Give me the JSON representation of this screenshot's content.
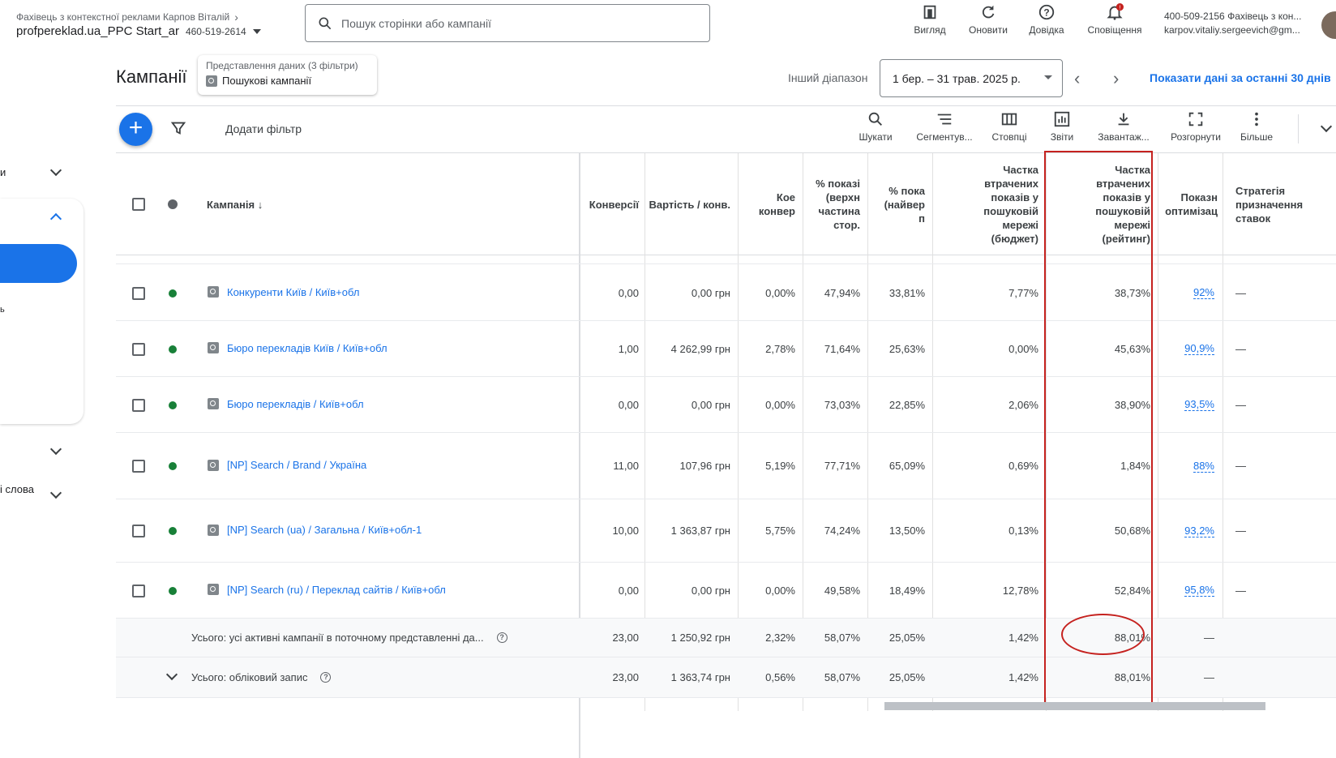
{
  "account": {
    "subtitle": "Фахівець з контекстної реклами Карпов Віталій",
    "name": "profpereklad.ua_PPC Start_ar",
    "id": "460-519-2614"
  },
  "search": {
    "placeholder": "Пошук сторінки або кампанії"
  },
  "top_actions": [
    {
      "label": "Вигляд",
      "icon": "view-icon"
    },
    {
      "label": "Оновити",
      "icon": "refresh-icon"
    },
    {
      "label": "Довідка",
      "icon": "help-icon"
    },
    {
      "label": "Сповіщення",
      "icon": "bell-icon"
    }
  ],
  "user": {
    "line1": "400-509-2156 Фахівець з кон...",
    "line2": "karpov.vitaliy.sergeevich@gm..."
  },
  "page_title": "Кампанії",
  "view_chip": {
    "title": "Представлення даних (3 фільтри)",
    "value": "Пошукові кампанії"
  },
  "range": {
    "label": "Інший діапазон",
    "value": "1 бер. – 31 трав. 2025 р.",
    "last30": "Показати дані за останні 30 днів"
  },
  "sidebar": {
    "item1": "и",
    "item2": "ь",
    "item3": "і слова"
  },
  "toolbar": {
    "add_filter": "Додати фільтр",
    "tools": [
      "Шукати",
      "Сегментув...",
      "Стовпці",
      "Звіти",
      "Завантаж...",
      "Розгорнути",
      "Більше"
    ]
  },
  "columns": {
    "campaign": "Кампанія",
    "conversions": "Конверсії",
    "cost_conv": "Вартість / конв.",
    "conv_rate": "Кое конвер",
    "top_share": "% показі (верхн частина стор.",
    "abs_top": "% пока (найвер п",
    "lost_budget": "Частка втрачених показів у пошуковій мережі (бюджет)",
    "lost_rank": "Частка втрачених показів у пошуковій мережі (рейтинг)",
    "opt_score": "Показн оптимізац",
    "bid_strategy": "Стратегія призначення ставок"
  },
  "rows": [
    {
      "name": "Конкуренти Київ / Київ+обл",
      "conv": "0,00",
      "cost": "0,00 грн",
      "rate": "0,00%",
      "top": "47,94%",
      "abs": "33,81%",
      "budget": "7,77%",
      "rank": "38,73%",
      "opt": "92%",
      "strategy": "—"
    },
    {
      "name": "Бюро перекладів Київ / Київ+обл",
      "conv": "1,00",
      "cost": "4 262,99 грн",
      "rate": "2,78%",
      "top": "71,64%",
      "abs": "25,63%",
      "budget": "0,00%",
      "rank": "45,63%",
      "opt": "90,9%",
      "strategy": "—"
    },
    {
      "name": "Бюро перекладів / Київ+обл",
      "conv": "0,00",
      "cost": "0,00 грн",
      "rate": "0,00%",
      "top": "73,03%",
      "abs": "22,85%",
      "budget": "2,06%",
      "rank": "38,90%",
      "opt": "93,5%",
      "strategy": "—"
    },
    {
      "name": "[NP] Search / Brand / Україна",
      "conv": "11,00",
      "cost": "107,96 грн",
      "rate": "5,19%",
      "top": "77,71%",
      "abs": "65,09%",
      "budget": "0,69%",
      "rank": "1,84%",
      "opt": "88%",
      "strategy": "—"
    },
    {
      "name": "[NP] Search (ua) / Загальна / Київ+обл-1",
      "conv": "10,00",
      "cost": "1 363,87 грн",
      "rate": "5,75%",
      "top": "74,24%",
      "abs": "13,50%",
      "budget": "0,13%",
      "rank": "50,68%",
      "opt": "93,2%",
      "strategy": "—"
    },
    {
      "name": "[NP] Search (ru) / Переклад сайтів / Київ+обл",
      "conv": "0,00",
      "cost": "0,00 грн",
      "rate": "0,00%",
      "top": "49,58%",
      "abs": "18,49%",
      "budget": "12,78%",
      "rank": "52,84%",
      "opt": "95,8%",
      "strategy": "—"
    }
  ],
  "totals": [
    {
      "label": "Усього: усі активні кампанії в поточному представленні да...",
      "conv": "23,00",
      "cost": "1 250,92 грн",
      "rate": "2,32%",
      "top": "58,07%",
      "abs": "25,05%",
      "budget": "1,42%",
      "rank": "88,01%",
      "opt": "—"
    },
    {
      "label": "Усього: обліковий запис",
      "conv": "23,00",
      "cost": "1 363,74 грн",
      "rate": "0,56%",
      "top": "58,07%",
      "abs": "25,05%",
      "budget": "1,42%",
      "rank": "88,01%",
      "opt": "—"
    }
  ],
  "colors": {
    "accent": "#1a73e8",
    "status_green": "#188038",
    "highlight_red": "#c5221f"
  }
}
